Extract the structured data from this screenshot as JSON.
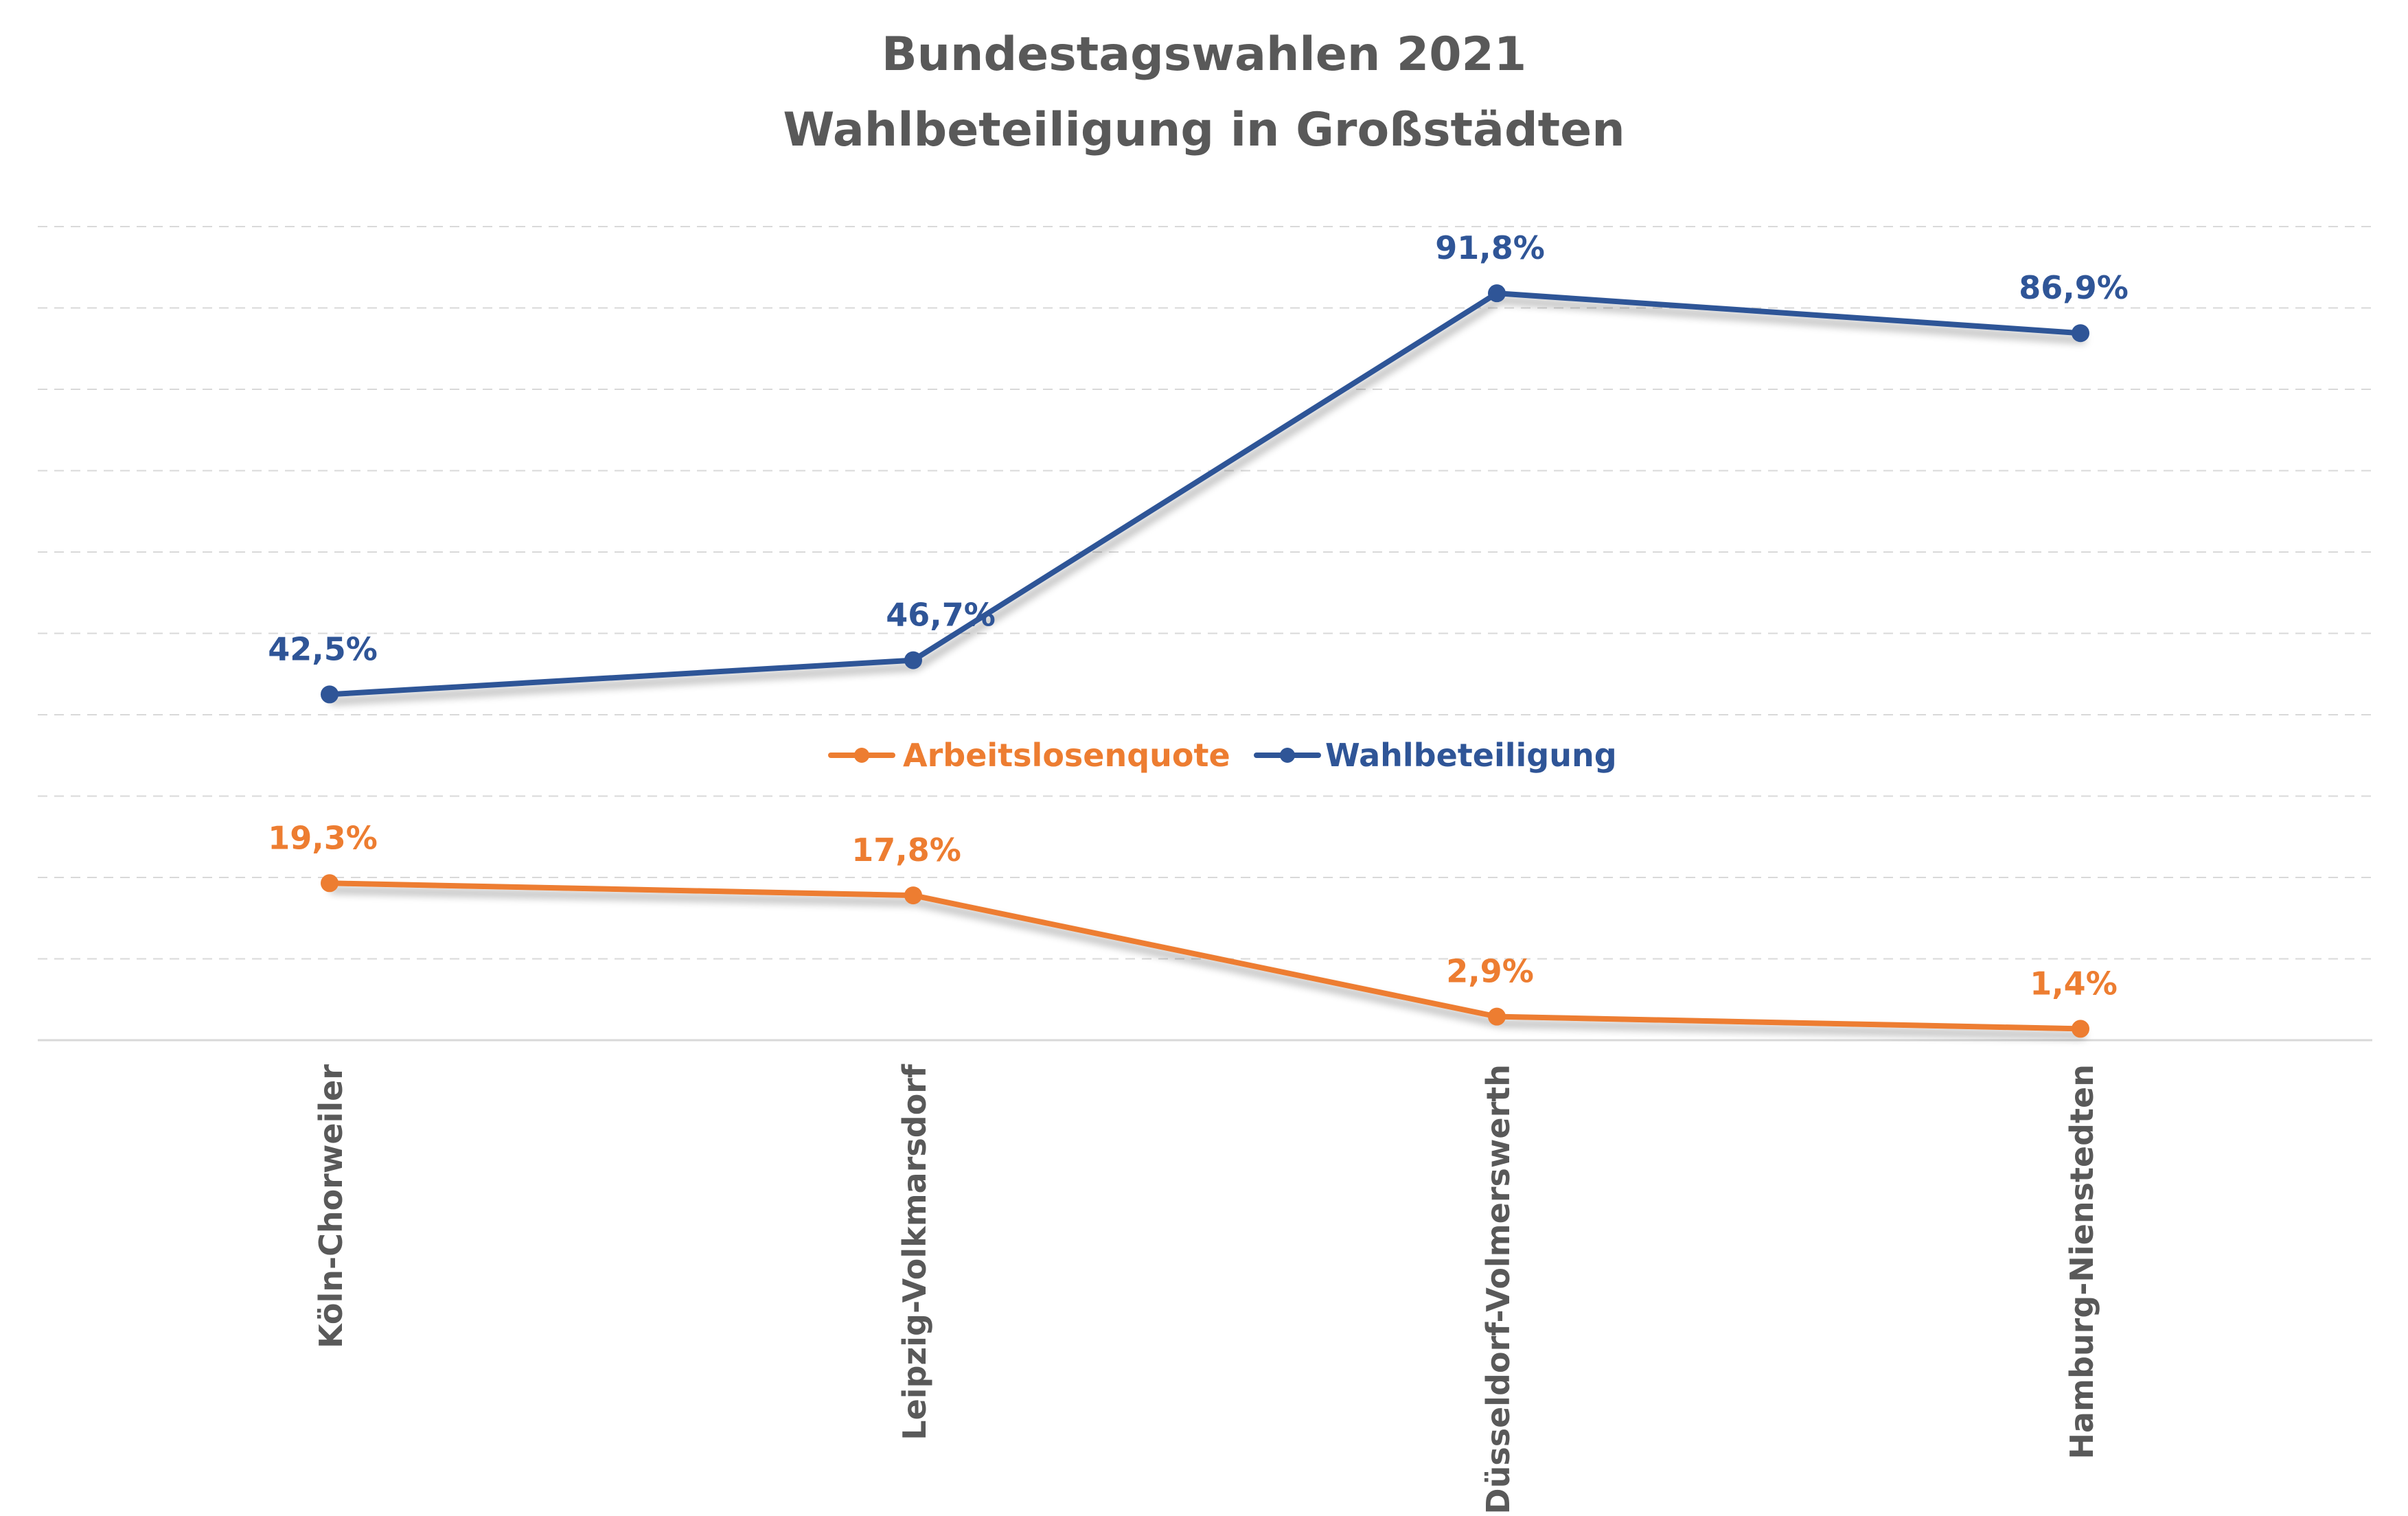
{
  "chart_data": {
    "type": "line",
    "title": "Bundestagswahlen 2021",
    "subtitle": "Wahlbeteiligung in Großstädten",
    "categories": [
      "Köln-Chorweiler",
      "Leipzig-Volkmarsdorf",
      "Düsseldorf-Volmerswerth",
      "Hamburg-Nienstedten"
    ],
    "series": [
      {
        "name": "Arbeitslosenquote",
        "values": [
          19.3,
          17.8,
          2.9,
          1.4
        ],
        "labels": [
          "19,3%",
          "17,8%",
          "2,9%",
          "1,4%"
        ],
        "color": "#ED7D31"
      },
      {
        "name": "Wahlbeteiligung",
        "values": [
          42.5,
          46.7,
          91.8,
          86.9
        ],
        "labels": [
          "42,5%",
          "46,7%",
          "91,8%",
          "86,9%"
        ],
        "color": "#2F5597"
      }
    ],
    "ylim": [
      0,
      100
    ],
    "grid": true,
    "legend": "center"
  }
}
